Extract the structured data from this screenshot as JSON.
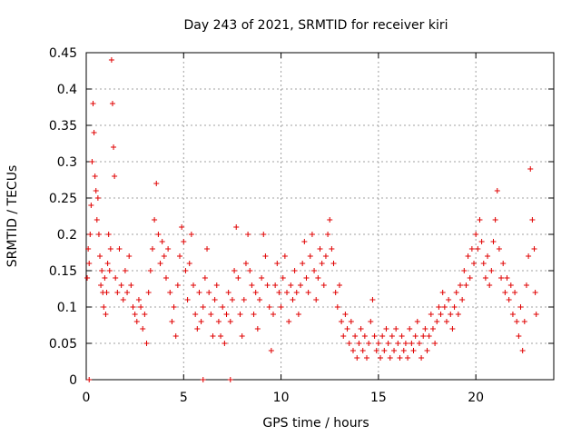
{
  "chart_data": {
    "type": "scatter",
    "title": "Day 243 of 2021, SRMTID for receiver kiri",
    "xlabel": "GPS time / hours",
    "ylabel": "SRMTID / TECUs",
    "xlim": [
      0,
      24
    ],
    "ylim": [
      0,
      0.45
    ],
    "xticks": [
      0,
      5,
      10,
      15,
      20
    ],
    "xtick_labels": [
      "0",
      "5",
      "10",
      "15",
      "20"
    ],
    "yticks": [
      0,
      0.05,
      0.1,
      0.15,
      0.2,
      0.25,
      0.3,
      0.35,
      0.4,
      0.45
    ],
    "ytick_labels": [
      "0",
      "0.05",
      "0.1",
      "0.15",
      "0.2",
      "0.25",
      "0.3",
      "0.35",
      "0.4",
      "0.45"
    ],
    "grid": true,
    "marker": "+",
    "color": "#e00000",
    "series": [
      {
        "name": "SRMTID",
        "points": [
          [
            0.05,
            0.14
          ],
          [
            0.1,
            0.18
          ],
          [
            0.15,
            0.16
          ],
          [
            0.2,
            0.2
          ],
          [
            0.25,
            0.24
          ],
          [
            0.3,
            0.3
          ],
          [
            0.35,
            0.38
          ],
          [
            0.4,
            0.34
          ],
          [
            0.45,
            0.28
          ],
          [
            0.5,
            0.26
          ],
          [
            0.55,
            0.22
          ],
          [
            0.6,
            0.25
          ],
          [
            0.65,
            0.2
          ],
          [
            0.7,
            0.17
          ],
          [
            0.75,
            0.13
          ],
          [
            0.8,
            0.15
          ],
          [
            0.85,
            0.12
          ],
          [
            0.9,
            0.1
          ],
          [
            0.95,
            0.14
          ],
          [
            1.0,
            0.09
          ],
          [
            1.05,
            0.12
          ],
          [
            1.1,
            0.16
          ],
          [
            1.15,
            0.2
          ],
          [
            1.2,
            0.15
          ],
          [
            1.25,
            0.18
          ],
          [
            1.3,
            0.44
          ],
          [
            1.35,
            0.38
          ],
          [
            1.4,
            0.32
          ],
          [
            1.45,
            0.28
          ],
          [
            1.5,
            0.14
          ],
          [
            1.6,
            0.12
          ],
          [
            1.7,
            0.18
          ],
          [
            1.8,
            0.13
          ],
          [
            1.9,
            0.11
          ],
          [
            2.0,
            0.15
          ],
          [
            2.1,
            0.12
          ],
          [
            2.2,
            0.17
          ],
          [
            2.3,
            0.13
          ],
          [
            2.4,
            0.1
          ],
          [
            2.5,
            0.09
          ],
          [
            2.6,
            0.08
          ],
          [
            2.7,
            0.11
          ],
          [
            2.8,
            0.1
          ],
          [
            2.9,
            0.07
          ],
          [
            3.0,
            0.09
          ],
          [
            3.1,
            0.05
          ],
          [
            3.2,
            0.12
          ],
          [
            3.3,
            0.15
          ],
          [
            3.4,
            0.18
          ],
          [
            3.5,
            0.22
          ],
          [
            3.6,
            0.27
          ],
          [
            3.7,
            0.2
          ],
          [
            3.8,
            0.16
          ],
          [
            3.9,
            0.19
          ],
          [
            4.0,
            0.17
          ],
          [
            4.1,
            0.14
          ],
          [
            4.2,
            0.18
          ],
          [
            4.3,
            0.12
          ],
          [
            4.4,
            0.08
          ],
          [
            4.5,
            0.1
          ],
          [
            4.6,
            0.06
          ],
          [
            4.7,
            0.13
          ],
          [
            4.8,
            0.17
          ],
          [
            4.9,
            0.21
          ],
          [
            5.0,
            0.19
          ],
          [
            5.1,
            0.15
          ],
          [
            5.2,
            0.11
          ],
          [
            5.3,
            0.16
          ],
          [
            5.4,
            0.2
          ],
          [
            5.5,
            0.13
          ],
          [
            5.6,
            0.09
          ],
          [
            5.7,
            0.07
          ],
          [
            5.8,
            0.12
          ],
          [
            5.9,
            0.08
          ],
          [
            6.0,
            0.1
          ],
          [
            6.1,
            0.14
          ],
          [
            6.2,
            0.18
          ],
          [
            6.3,
            0.12
          ],
          [
            6.4,
            0.09
          ],
          [
            6.5,
            0.06
          ],
          [
            6.6,
            0.11
          ],
          [
            6.7,
            0.13
          ],
          [
            6.8,
            0.08
          ],
          [
            6.9,
            0.06
          ],
          [
            7.0,
            0.1
          ],
          [
            7.1,
            0.05
          ],
          [
            7.2,
            0.09
          ],
          [
            7.3,
            0.12
          ],
          [
            7.4,
            0.08
          ],
          [
            7.5,
            0.11
          ],
          [
            7.6,
            0.15
          ],
          [
            7.7,
            0.21
          ],
          [
            7.8,
            0.14
          ],
          [
            7.9,
            0.09
          ],
          [
            8.0,
            0.06
          ],
          [
            8.1,
            0.11
          ],
          [
            8.2,
            0.16
          ],
          [
            8.3,
            0.2
          ],
          [
            8.4,
            0.15
          ],
          [
            8.5,
            0.13
          ],
          [
            8.6,
            0.09
          ],
          [
            8.7,
            0.12
          ],
          [
            8.8,
            0.07
          ],
          [
            8.9,
            0.11
          ],
          [
            9.0,
            0.14
          ],
          [
            9.1,
            0.2
          ],
          [
            9.2,
            0.17
          ],
          [
            9.3,
            0.13
          ],
          [
            9.4,
            0.1
          ],
          [
            9.5,
            0.04
          ],
          [
            9.6,
            0.09
          ],
          [
            9.7,
            0.13
          ],
          [
            9.8,
            0.16
          ],
          [
            9.9,
            0.12
          ],
          [
            10.0,
            0.1
          ],
          [
            10.1,
            0.14
          ],
          [
            10.2,
            0.17
          ],
          [
            10.3,
            0.12
          ],
          [
            10.4,
            0.08
          ],
          [
            10.5,
            0.13
          ],
          [
            10.6,
            0.11
          ],
          [
            10.7,
            0.15
          ],
          [
            10.8,
            0.12
          ],
          [
            10.9,
            0.09
          ],
          [
            11.0,
            0.13
          ],
          [
            11.1,
            0.16
          ],
          [
            11.2,
            0.19
          ],
          [
            11.3,
            0.14
          ],
          [
            11.4,
            0.12
          ],
          [
            11.5,
            0.17
          ],
          [
            11.6,
            0.2
          ],
          [
            11.7,
            0.15
          ],
          [
            11.8,
            0.11
          ],
          [
            11.9,
            0.14
          ],
          [
            12.0,
            0.18
          ],
          [
            12.1,
            0.16
          ],
          [
            12.2,
            0.13
          ],
          [
            12.3,
            0.17
          ],
          [
            12.4,
            0.2
          ],
          [
            12.5,
            0.22
          ],
          [
            12.6,
            0.18
          ],
          [
            12.7,
            0.16
          ],
          [
            12.8,
            0.12
          ],
          [
            12.9,
            0.1
          ],
          [
            13.0,
            0.13
          ],
          [
            13.1,
            0.08
          ],
          [
            13.2,
            0.06
          ],
          [
            13.3,
            0.09
          ],
          [
            13.4,
            0.07
          ],
          [
            13.5,
            0.05
          ],
          [
            13.6,
            0.08
          ],
          [
            13.7,
            0.04
          ],
          [
            13.8,
            0.06
          ],
          [
            13.9,
            0.03
          ],
          [
            14.0,
            0.05
          ],
          [
            14.1,
            0.07
          ],
          [
            14.2,
            0.04
          ],
          [
            14.3,
            0.06
          ],
          [
            14.4,
            0.03
          ],
          [
            14.5,
            0.05
          ],
          [
            14.6,
            0.08
          ],
          [
            14.7,
            0.11
          ],
          [
            14.8,
            0.06
          ],
          [
            14.9,
            0.04
          ],
          [
            15.0,
            0.05
          ],
          [
            15.1,
            0.03
          ],
          [
            15.2,
            0.06
          ],
          [
            15.3,
            0.04
          ],
          [
            15.4,
            0.07
          ],
          [
            15.5,
            0.05
          ],
          [
            15.6,
            0.03
          ],
          [
            15.7,
            0.06
          ],
          [
            15.8,
            0.04
          ],
          [
            15.9,
            0.07
          ],
          [
            16.0,
            0.05
          ],
          [
            16.1,
            0.03
          ],
          [
            16.2,
            0.06
          ],
          [
            16.3,
            0.04
          ],
          [
            16.4,
            0.05
          ],
          [
            16.5,
            0.03
          ],
          [
            16.6,
            0.07
          ],
          [
            16.7,
            0.05
          ],
          [
            16.8,
            0.04
          ],
          [
            16.9,
            0.06
          ],
          [
            17.0,
            0.08
          ],
          [
            17.1,
            0.05
          ],
          [
            17.2,
            0.03
          ],
          [
            17.3,
            0.06
          ],
          [
            17.4,
            0.07
          ],
          [
            17.5,
            0.04
          ],
          [
            17.6,
            0.06
          ],
          [
            17.7,
            0.09
          ],
          [
            17.8,
            0.07
          ],
          [
            17.9,
            0.05
          ],
          [
            18.0,
            0.08
          ],
          [
            18.1,
            0.1
          ],
          [
            18.2,
            0.09
          ],
          [
            18.3,
            0.12
          ],
          [
            18.4,
            0.1
          ],
          [
            18.5,
            0.08
          ],
          [
            18.6,
            0.11
          ],
          [
            18.7,
            0.09
          ],
          [
            18.8,
            0.07
          ],
          [
            18.9,
            0.1
          ],
          [
            19.0,
            0.12
          ],
          [
            19.1,
            0.09
          ],
          [
            19.2,
            0.13
          ],
          [
            19.3,
            0.11
          ],
          [
            19.4,
            0.15
          ],
          [
            19.5,
            0.13
          ],
          [
            19.6,
            0.17
          ],
          [
            19.7,
            0.14
          ],
          [
            19.8,
            0.18
          ],
          [
            19.9,
            0.16
          ],
          [
            20.0,
            0.2
          ],
          [
            20.1,
            0.18
          ],
          [
            20.2,
            0.22
          ],
          [
            20.3,
            0.19
          ],
          [
            20.4,
            0.16
          ],
          [
            20.5,
            0.14
          ],
          [
            20.6,
            0.17
          ],
          [
            20.7,
            0.13
          ],
          [
            20.8,
            0.15
          ],
          [
            20.9,
            0.19
          ],
          [
            21.0,
            0.22
          ],
          [
            21.1,
            0.26
          ],
          [
            21.2,
            0.18
          ],
          [
            21.3,
            0.14
          ],
          [
            21.4,
            0.16
          ],
          [
            21.5,
            0.12
          ],
          [
            21.6,
            0.14
          ],
          [
            21.7,
            0.11
          ],
          [
            21.8,
            0.13
          ],
          [
            21.9,
            0.09
          ],
          [
            22.0,
            0.12
          ],
          [
            22.1,
            0.08
          ],
          [
            22.2,
            0.06
          ],
          [
            22.3,
            0.1
          ],
          [
            22.4,
            0.04
          ],
          [
            22.5,
            0.08
          ],
          [
            22.6,
            0.13
          ],
          [
            22.7,
            0.17
          ],
          [
            22.8,
            0.29
          ],
          [
            22.9,
            0.22
          ],
          [
            23.0,
            0.18
          ],
          [
            23.05,
            0.12
          ],
          [
            23.1,
            0.09
          ],
          [
            0.15,
            0
          ],
          [
            6.0,
            0
          ],
          [
            7.4,
            0
          ]
        ]
      }
    ]
  }
}
